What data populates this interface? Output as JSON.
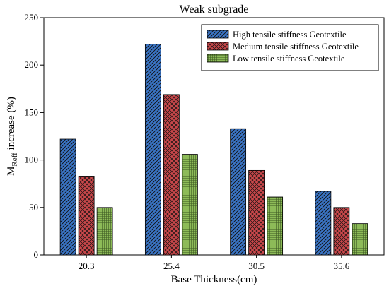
{
  "chart_data": {
    "type": "bar",
    "title": "Weak subgrade",
    "xlabel": "Base Thickness(cm)",
    "ylabel_main": "M",
    "ylabel_sub": "Reff",
    "ylabel_rest": " increase (%)",
    "categories": [
      "20.3",
      "25.4",
      "30.5",
      "35.6"
    ],
    "ylim": [
      0,
      250
    ],
    "yticks": [
      0,
      50,
      100,
      150,
      200,
      250
    ],
    "grid": false,
    "legend_position": "top-right",
    "series": [
      {
        "name": "High tensile stiffness Geotextile",
        "color": "#3a74c4",
        "pattern": "diagonal-hatch",
        "values": [
          122,
          222,
          133,
          67
        ]
      },
      {
        "name": "Medium tensile stiffness Geotextile",
        "color": "#c8474a",
        "pattern": "crosshatch",
        "values": [
          83,
          169,
          89,
          50
        ]
      },
      {
        "name": "Low tensile stiffness Geotextile",
        "color": "#8dbb58",
        "pattern": "fine-grid",
        "values": [
          50,
          106,
          61,
          33
        ]
      }
    ]
  }
}
